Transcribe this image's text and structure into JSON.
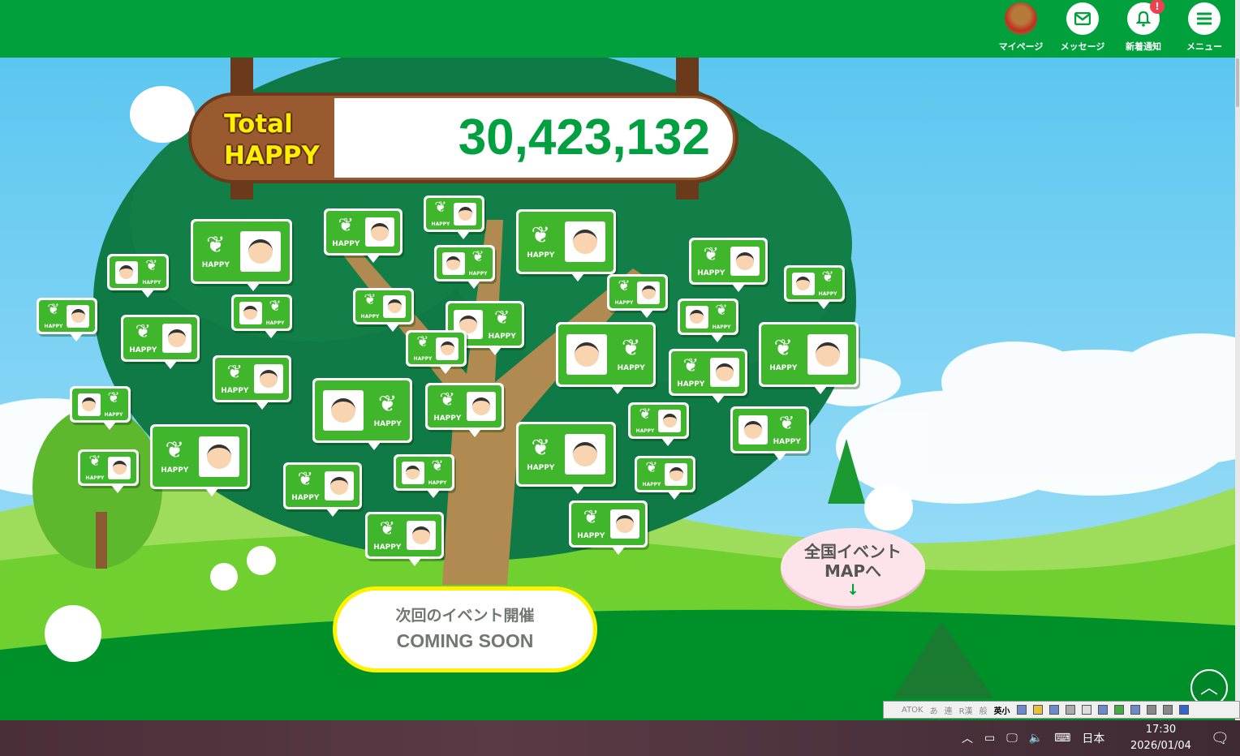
{
  "header": {
    "nav": [
      {
        "label": "マイページ",
        "icon": "avatar"
      },
      {
        "label": "メッセージ",
        "icon": "envelope-icon"
      },
      {
        "label": "新着通知",
        "icon": "bell-icon",
        "badge": "!"
      },
      {
        "label": "メニュー",
        "icon": "hamburger-icon"
      }
    ],
    "color": "#00a03c"
  },
  "total": {
    "label_line1": "Total",
    "label_line2": "HAPPY",
    "value": "30,423,132"
  },
  "bubble_label": "HAPPY",
  "event": {
    "line1": "次回のイベント開催",
    "line2": "COMING SOON"
  },
  "map_button": {
    "line1": "全国イベント",
    "line2": "MAPへ",
    "arrow": "↓"
  },
  "scroll_top": "︿",
  "ime_toolbar": {
    "name": "ATOK",
    "modes": [
      "あ",
      "連",
      "R漢",
      "般"
    ],
    "active": "英小"
  },
  "taskbar": {
    "ime": "日本",
    "time": "17:30",
    "date": "2026/01/04"
  }
}
